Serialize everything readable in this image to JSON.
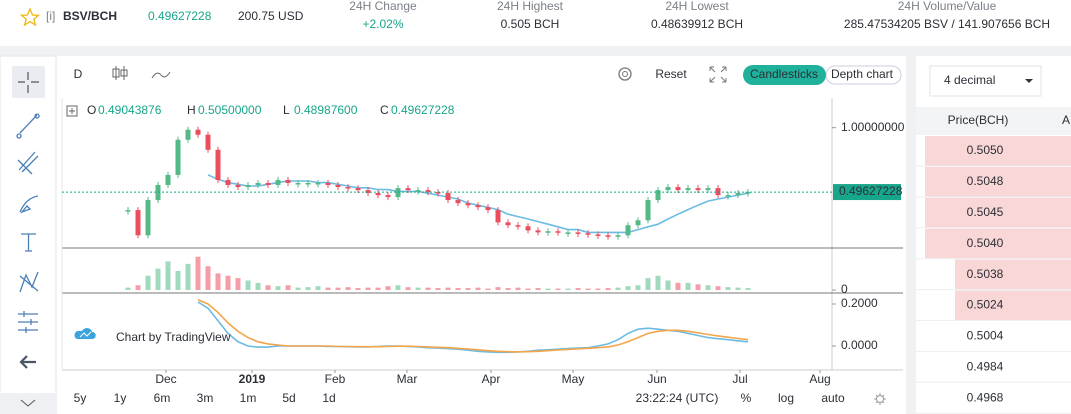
{
  "header": {
    "info": "[i]",
    "pair": "BSV/BCH",
    "price": "0.49627228",
    "usd": "200.75 USD",
    "stats": [
      {
        "label": "24H Change",
        "value": "+2.02%"
      },
      {
        "label": "24H Highest",
        "value": "0.505 BCH"
      },
      {
        "label": "24H Lowest",
        "value": "0.48639912 BCH"
      },
      {
        "label": "24H Volume/Value",
        "value": "285.47534205 BSV / 141.907656 BCH"
      }
    ]
  },
  "toolbar": {
    "interval": "D",
    "reset": "Reset",
    "candlesticks": "Candlesticks",
    "depth": "Depth chart"
  },
  "ohlc": [
    {
      "key": "O",
      "value": "0.49043876"
    },
    {
      "key": "H",
      "value": "0.50500000"
    },
    {
      "key": "L",
      "value": "0.48987600"
    },
    {
      "key": "C",
      "value": "0.49627228"
    }
  ],
  "watermark": "Chart by TradingView",
  "chart_data": {
    "type": "candlestick",
    "price": [
      0.408,
      0.31,
      0.455,
      0.536,
      0.598,
      0.877,
      0.978,
      0.926,
      0.786,
      0.566,
      0.536,
      0.524,
      0.536,
      0.548,
      0.536,
      0.566,
      0.548,
      0.548,
      0.548,
      0.548,
      0.536,
      0.524,
      0.518,
      0.507,
      0.491,
      0.48,
      0.47,
      0.518,
      0.507,
      0.507,
      0.496,
      0.491,
      0.455,
      0.44,
      0.43,
      0.421,
      0.408,
      0.357,
      0.346,
      0.342,
      0.327,
      0.32,
      0.324,
      0.32,
      0.32,
      0.317,
      0.313,
      0.31,
      0.307,
      0.31,
      0.346,
      0.365,
      0.455,
      0.507,
      0.524,
      0.507,
      0.518,
      0.507,
      0.518,
      0.48,
      0.48,
      0.491,
      0.496
    ],
    "ma": [
      null,
      null,
      null,
      null,
      null,
      null,
      null,
      null,
      0.598,
      0.57,
      0.55,
      0.54,
      0.53,
      0.53,
      0.54,
      0.55,
      0.56,
      0.56,
      0.56,
      0.55,
      0.55,
      0.54,
      0.53,
      0.52,
      0.52,
      0.51,
      0.51,
      0.5,
      0.5,
      0.5,
      0.49,
      0.48,
      0.47,
      0.46,
      0.44,
      0.43,
      0.42,
      0.41,
      0.39,
      0.38,
      0.37,
      0.36,
      0.35,
      0.34,
      0.33,
      0.33,
      0.32,
      0.32,
      0.32,
      0.32,
      0.32,
      0.33,
      0.34,
      0.35,
      0.37,
      0.39,
      0.41,
      0.43,
      0.45,
      0.46,
      0.47,
      0.48,
      0.49
    ],
    "volume": [
      5,
      10,
      30,
      45,
      60,
      40,
      55,
      70,
      50,
      35,
      30,
      25,
      20,
      15,
      10,
      8,
      10,
      5,
      6,
      8,
      5,
      5,
      6,
      4,
      5,
      5,
      8,
      10,
      6,
      5,
      5,
      4,
      5,
      4,
      4,
      5,
      3,
      6,
      4,
      5,
      3,
      4,
      3,
      3,
      3,
      4,
      3,
      3,
      4,
      5,
      8,
      10,
      25,
      30,
      20,
      15,
      15,
      12,
      10,
      8,
      6,
      5,
      4
    ],
    "macd": [
      null,
      null,
      null,
      null,
      null,
      null,
      null,
      0.21,
      0.18,
      0.12,
      0.06,
      0.02,
      0.0,
      -0.005,
      -0.005,
      0.0,
      0.0,
      0.0,
      0.0,
      0.0,
      -0.002,
      -0.002,
      -0.003,
      -0.004,
      -0.004,
      -0.002,
      0.0,
      0.0,
      -0.002,
      -0.004,
      -0.008,
      -0.01,
      -0.012,
      -0.015,
      -0.02,
      -0.025,
      -0.028,
      -0.03,
      -0.03,
      -0.028,
      -0.025,
      -0.02,
      -0.018,
      -0.015,
      -0.012,
      -0.01,
      -0.008,
      0.0,
      0.01,
      0.03,
      0.06,
      0.08,
      0.085,
      0.08,
      0.075,
      0.07,
      0.06,
      0.05,
      0.04,
      0.035,
      0.03,
      0.025,
      0.02
    ],
    "signal": [
      null,
      null,
      null,
      null,
      null,
      null,
      null,
      0.22,
      0.2,
      0.16,
      0.11,
      0.07,
      0.04,
      0.02,
      0.01,
      0.005,
      0.0,
      0.0,
      0.0,
      0.0,
      0.0,
      -0.002,
      -0.002,
      -0.003,
      -0.003,
      -0.003,
      -0.002,
      -0.001,
      -0.001,
      -0.002,
      -0.004,
      -0.006,
      -0.008,
      -0.011,
      -0.014,
      -0.018,
      -0.022,
      -0.025,
      -0.027,
      -0.028,
      -0.027,
      -0.025,
      -0.022,
      -0.019,
      -0.016,
      -0.013,
      -0.011,
      -0.008,
      -0.004,
      0.005,
      0.02,
      0.04,
      0.06,
      0.07,
      0.075,
      0.075,
      0.07,
      0.063,
      0.055,
      0.048,
      0.042,
      0.036,
      0.03
    ],
    "log": true,
    "ylim": [
      0.27,
      1.28
    ],
    "yticks": [
      {
        "value": 1,
        "label": "1.00000000"
      }
    ],
    "last_price": 0.49627228,
    "volume_ylim": [
      0,
      80
    ],
    "volume_yticks": [
      0
    ],
    "macd_ylim": [
      -0.114,
      0.238
    ],
    "macd_yticks": [
      {
        "value": 0.2,
        "label": "0.2000"
      },
      {
        "value": 0,
        "label": "0.0000"
      }
    ],
    "months": [
      "Dec",
      "2019",
      "Feb",
      "Mar",
      "Apr",
      "May",
      "Jun",
      "Jul",
      "Aug"
    ],
    "up_color": "#53b987",
    "down_color": "#eb4d5c",
    "ma_color": "#6cbbe3",
    "macd_color": "#6cbbe3",
    "signal_color": "#f3a54c",
    "last_color": "#17a68a"
  },
  "ranges": [
    "5y",
    "1y",
    "6m",
    "3m",
    "1m",
    "5d",
    "1d"
  ],
  "time": "23:22:24 (UTC)",
  "scale_buttons": [
    "%",
    "log",
    "auto"
  ],
  "orderbook": {
    "decimal": "4 decimal",
    "price_header": "Price(BCH)",
    "amount_header": "A",
    "prices": [
      "0.5050",
      "0.5048",
      "0.5045",
      "0.5040",
      "0.5038",
      "0.5024",
      "0.5004",
      "0.4984",
      "0.4968"
    ]
  }
}
